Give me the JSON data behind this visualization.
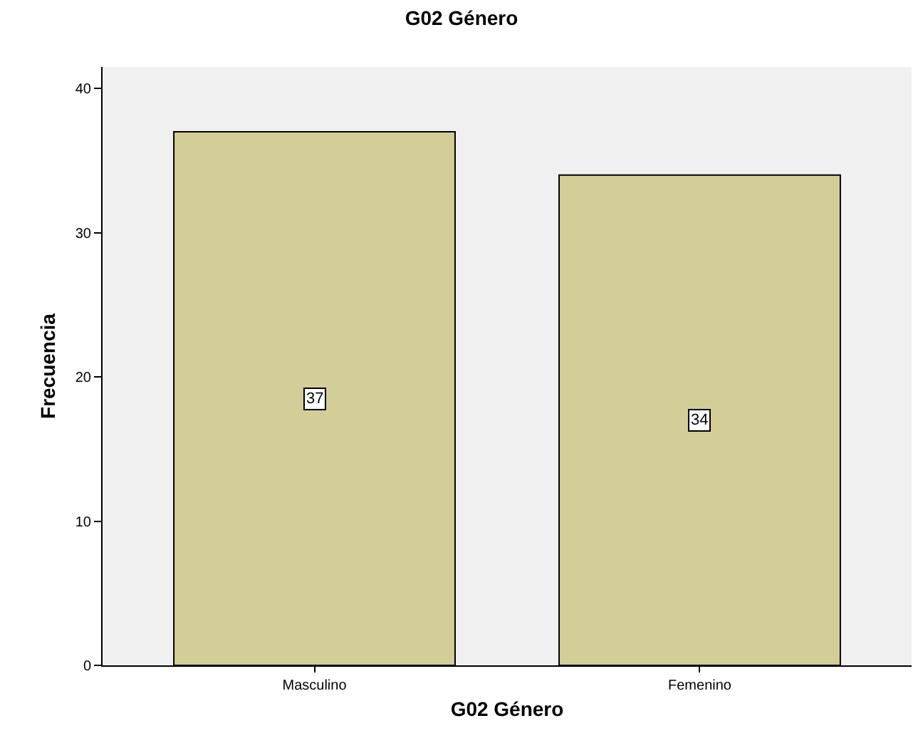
{
  "chart_data": {
    "type": "bar",
    "title": "G02 Género",
    "xlabel": "G02 Género",
    "ylabel": "Frecuencia",
    "categories": [
      "Masculino",
      "Femenino"
    ],
    "values": [
      37,
      34
    ],
    "color": "#d3ce97",
    "ylim": [
      0,
      41.5
    ],
    "yticks": [
      0,
      10,
      20,
      30,
      40
    ],
    "grid": false,
    "data_labels": true
  }
}
